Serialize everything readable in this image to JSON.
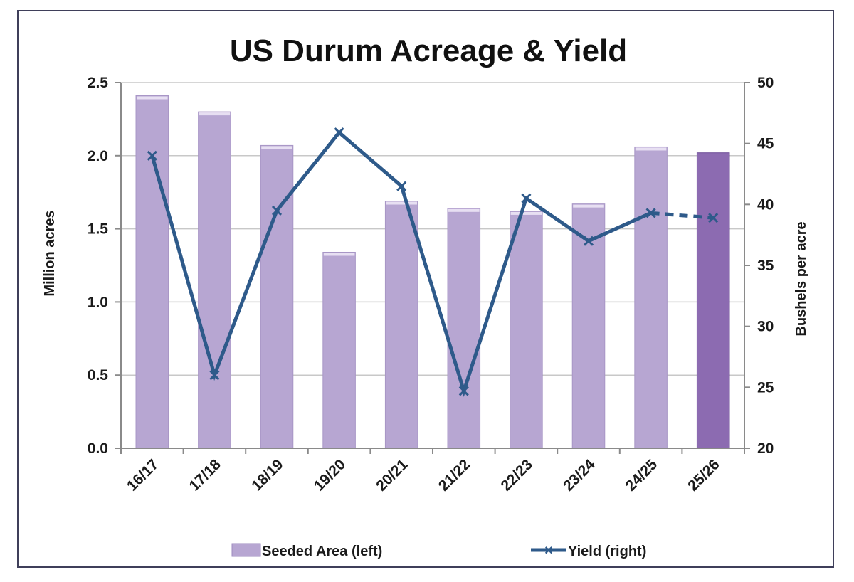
{
  "chart_data": {
    "type": "bar",
    "title": "US Durum Acreage & Yield",
    "categories": [
      "16/17",
      "17/18",
      "18/19",
      "19/20",
      "20/21",
      "21/22",
      "22/23",
      "23/24",
      "24/25",
      "25/26"
    ],
    "y_left": {
      "label": "Million acres",
      "range": [
        0,
        2.5
      ],
      "ticks": [
        "0.0",
        "0.5",
        "1.0",
        "1.5",
        "2.0",
        "2.5"
      ]
    },
    "y_right": {
      "label": "Bushels per acre",
      "range": [
        20,
        50
      ],
      "ticks": [
        "20",
        "25",
        "30",
        "35",
        "40",
        "45",
        "50"
      ]
    },
    "grid": true,
    "legend_position": "bottom",
    "series": [
      {
        "name": "Seeded Area (left)",
        "type": "bar",
        "axis": "left",
        "values": [
          2.41,
          2.3,
          2.07,
          1.34,
          1.69,
          1.64,
          1.62,
          1.67,
          2.06,
          2.02
        ],
        "color": "#b7a6d2",
        "highlight_color": "#8c6bb1",
        "highlight_index": 9
      },
      {
        "name": "Yield (right)",
        "type": "line",
        "axis": "right",
        "values": [
          44.0,
          26.0,
          39.5,
          45.9,
          41.5,
          24.7,
          40.5,
          37.0,
          39.3,
          38.9
        ],
        "color": "#2e5a8a",
        "dashed_from_index": 8
      }
    ]
  }
}
